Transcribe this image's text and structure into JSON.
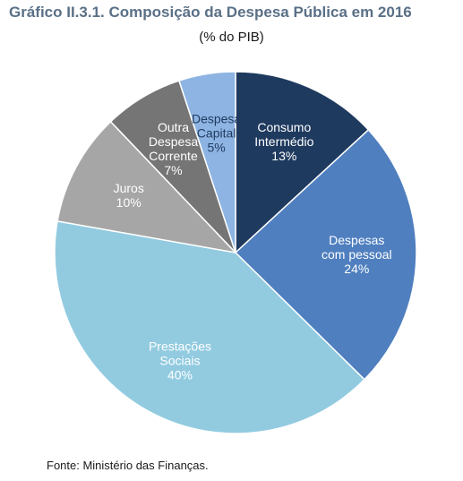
{
  "chart_data": {
    "type": "pie",
    "title": "Gráfico II.3.1. Composição da Despesa Pública em 2016",
    "subtitle": "(% do PIB)",
    "source": "Fonte: Ministério das Finanças.",
    "slices": [
      {
        "lines": [
          "Consumo",
          "Intermédio",
          "13%"
        ],
        "value": 13,
        "color": "#1f3a5f",
        "text_color": "#ffffff"
      },
      {
        "lines": [
          "Despesas",
          "com pessoal",
          "24%"
        ],
        "value": 24,
        "color": "#4f7fbf",
        "text_color": "#ffffff"
      },
      {
        "lines": [
          "Prestações",
          "Sociais",
          "40%"
        ],
        "value": 40,
        "color": "#92cbe0",
        "text_color": "#ffffff"
      },
      {
        "lines": [
          "Juros",
          "10%"
        ],
        "value": 10,
        "color": "#a6a6a6",
        "text_color": "#ffffff"
      },
      {
        "lines": [
          "Outra",
          "Despesa",
          "Corrente",
          "7%"
        ],
        "value": 7,
        "color": "#757575",
        "text_color": "#ffffff"
      },
      {
        "lines": [
          "Despesa",
          "Capital",
          "5%"
        ],
        "value": 5,
        "color": "#8db4e2",
        "text_color": "#1f3a5f"
      }
    ]
  }
}
